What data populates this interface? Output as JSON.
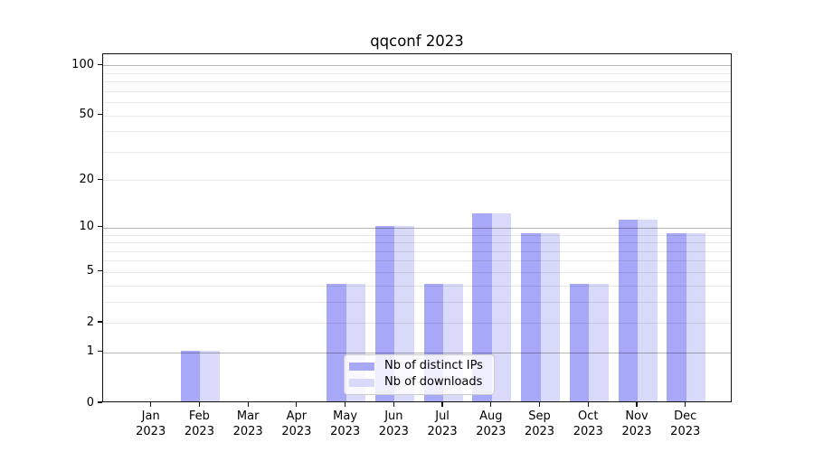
{
  "title": "qqconf 2023",
  "chart_data": {
    "type": "bar",
    "title": "qqconf 2023",
    "x_categories": [
      {
        "month": "Jan",
        "year": "2023"
      },
      {
        "month": "Feb",
        "year": "2023"
      },
      {
        "month": "Mar",
        "year": "2023"
      },
      {
        "month": "Apr",
        "year": "2023"
      },
      {
        "month": "May",
        "year": "2023"
      },
      {
        "month": "Jun",
        "year": "2023"
      },
      {
        "month": "Jul",
        "year": "2023"
      },
      {
        "month": "Aug",
        "year": "2023"
      },
      {
        "month": "Sep",
        "year": "2023"
      },
      {
        "month": "Oct",
        "year": "2023"
      },
      {
        "month": "Nov",
        "year": "2023"
      },
      {
        "month": "Dec",
        "year": "2023"
      }
    ],
    "series": [
      {
        "name": "Nb of distinct IPs",
        "color": "#a8a8f8",
        "values": [
          0,
          1,
          0,
          0,
          4,
          10,
          4,
          12,
          9,
          4,
          11,
          9
        ]
      },
      {
        "name": "Nb of downloads",
        "color": "#d9d9f9",
        "values": [
          0,
          1,
          0,
          0,
          4,
          10,
          4,
          12,
          9,
          4,
          11,
          9
        ]
      }
    ],
    "y_axis": {
      "scale": "log10(1+v)",
      "ticks": [
        0,
        1,
        2,
        5,
        10,
        20,
        50,
        100
      ],
      "top_value": 117
    },
    "grid": {
      "major_values": [
        1,
        10,
        100
      ],
      "minor_values": [
        2,
        3,
        4,
        5,
        6,
        7,
        8,
        9,
        20,
        30,
        40,
        50,
        60,
        70,
        80,
        90
      ],
      "major_color": "rgba(0,0,0,0.29)",
      "minor_color": "rgba(0,0,0,0.085)"
    },
    "legend": {
      "position": "inside-bottom-center"
    }
  }
}
